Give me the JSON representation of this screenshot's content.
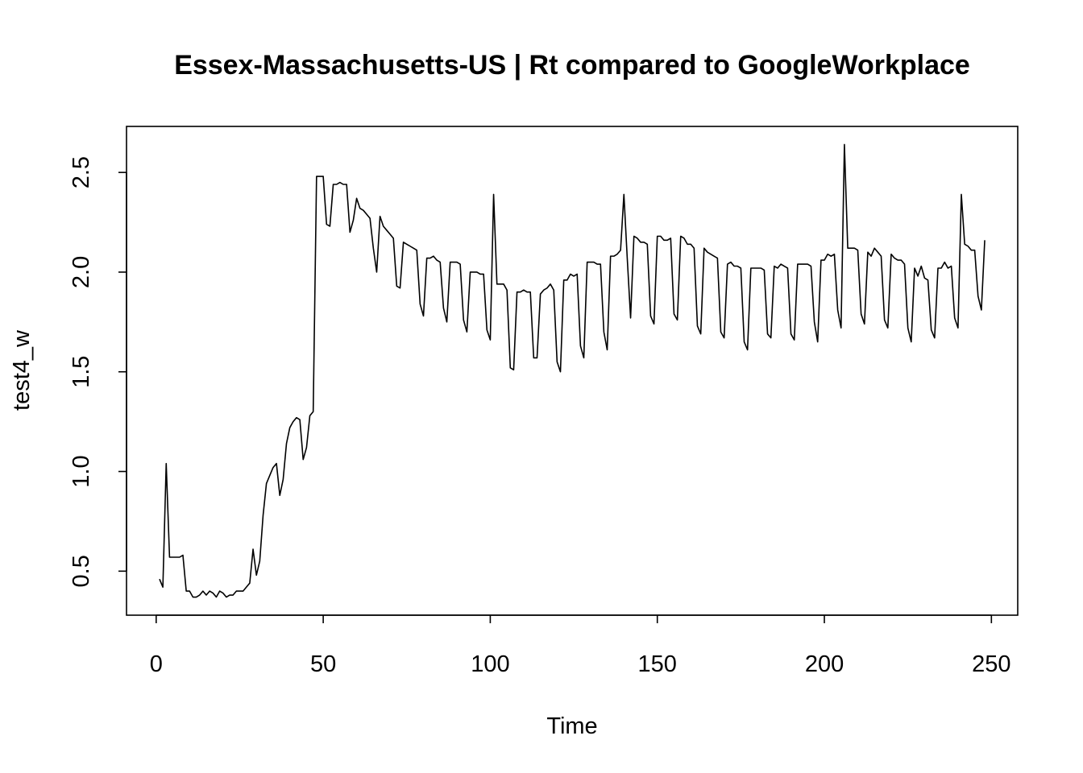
{
  "chart_data": {
    "type": "line",
    "title": "Essex-Massachusetts-US | Rt compared to GoogleWorkplace",
    "xlabel": "Time",
    "ylabel": "test4_w",
    "xlim": [
      1,
      248
    ],
    "ylim": [
      0.37,
      2.64
    ],
    "x_ticks": [
      0,
      50,
      100,
      150,
      200,
      250
    ],
    "x_tick_labels": [
      "0",
      "50",
      "100",
      "150",
      "200",
      "250"
    ],
    "y_ticks": [
      0.5,
      1.0,
      1.5,
      2.0,
      2.5
    ],
    "y_tick_labels": [
      "0.5",
      "1.0",
      "1.5",
      "2.0",
      "2.5"
    ],
    "grid": false,
    "series": [
      {
        "x_start": 1,
        "values": [
          0.46,
          0.42,
          1.04,
          0.57,
          0.57,
          0.57,
          0.57,
          0.58,
          0.4,
          0.4,
          0.37,
          0.37,
          0.38,
          0.4,
          0.38,
          0.4,
          0.39,
          0.37,
          0.4,
          0.39,
          0.37,
          0.38,
          0.38,
          0.4,
          0.4,
          0.4,
          0.42,
          0.44,
          0.61,
          0.48,
          0.55,
          0.78,
          0.94,
          0.98,
          1.02,
          1.04,
          0.88,
          0.96,
          1.14,
          1.22,
          1.25,
          1.27,
          1.26,
          1.06,
          1.12,
          1.28,
          1.3,
          2.48,
          2.48,
          2.48,
          2.24,
          2.23,
          2.44,
          2.44,
          2.45,
          2.44,
          2.44,
          2.2,
          2.26,
          2.37,
          2.32,
          2.31,
          2.29,
          2.27,
          2.12,
          2.0,
          2.28,
          2.23,
          2.21,
          2.19,
          2.17,
          1.93,
          1.92,
          2.15,
          2.14,
          2.13,
          2.12,
          2.11,
          1.84,
          1.78,
          2.07,
          2.07,
          2.08,
          2.06,
          2.05,
          1.82,
          1.75,
          2.05,
          2.05,
          2.05,
          2.04,
          1.76,
          1.7,
          2.0,
          2.0,
          2.0,
          1.99,
          1.99,
          1.71,
          1.66,
          2.39,
          1.94,
          1.94,
          1.94,
          1.91,
          1.52,
          1.51,
          1.9,
          1.9,
          1.91,
          1.9,
          1.9,
          1.57,
          1.57,
          1.89,
          1.91,
          1.92,
          1.94,
          1.91,
          1.55,
          1.5,
          1.96,
          1.96,
          1.99,
          1.98,
          1.99,
          1.63,
          1.57,
          2.05,
          2.05,
          2.05,
          2.04,
          2.04,
          1.7,
          1.61,
          2.08,
          2.08,
          2.09,
          2.11,
          2.39,
          2.07,
          1.77,
          2.18,
          2.17,
          2.15,
          2.15,
          2.14,
          1.78,
          1.74,
          2.18,
          2.18,
          2.16,
          2.16,
          2.17,
          1.79,
          1.76,
          2.18,
          2.17,
          2.14,
          2.14,
          2.12,
          1.73,
          1.69,
          2.12,
          2.1,
          2.09,
          2.08,
          2.07,
          1.7,
          1.67,
          2.04,
          2.05,
          2.03,
          2.03,
          2.02,
          1.65,
          1.61,
          2.02,
          2.02,
          2.02,
          2.02,
          2.01,
          1.69,
          1.67,
          2.03,
          2.02,
          2.04,
          2.03,
          2.02,
          1.69,
          1.66,
          2.04,
          2.04,
          2.04,
          2.04,
          2.03,
          1.75,
          1.65,
          2.06,
          2.06,
          2.09,
          2.08,
          2.09,
          1.81,
          1.72,
          2.64,
          2.12,
          2.12,
          2.12,
          2.11,
          1.79,
          1.74,
          2.1,
          2.08,
          2.12,
          2.1,
          2.08,
          1.76,
          1.72,
          2.09,
          2.07,
          2.06,
          2.06,
          2.04,
          1.72,
          1.65,
          2.02,
          1.98,
          2.03,
          1.97,
          1.96,
          1.71,
          1.67,
          2.02,
          2.02,
          2.05,
          2.02,
          2.03,
          1.77,
          1.72,
          2.39,
          2.14,
          2.13,
          2.11,
          2.11,
          1.88,
          1.81,
          2.16
        ]
      }
    ]
  }
}
